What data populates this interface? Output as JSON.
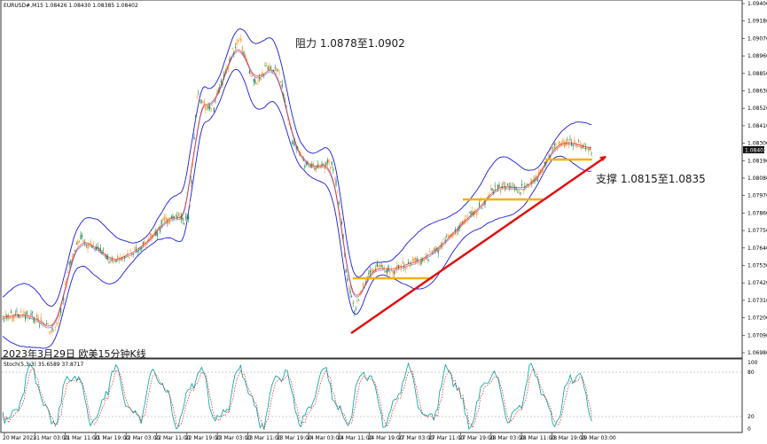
{
  "symbol_header": "EURUSD#,M15  1.08426 1.08430 1.08385 1.08402",
  "annotations": {
    "resistance": "阻力 1.0878至1.0902",
    "support": "支撑 1.0815至1.0835",
    "caption": "2023年3月29日 欧美15分钟K线"
  },
  "current_price": "1.08402",
  "price_axis": [
    "1.09400",
    "1.09180",
    "1.09070",
    "1.08960",
    "1.08850",
    "1.08630",
    "1.08520",
    "1.08410",
    "1.08300",
    "1.08190",
    "1.08080",
    "1.07970",
    "1.07860",
    "1.07750",
    "1.07640",
    "1.07530",
    "1.07420",
    "1.07310",
    "1.07200",
    "1.07090",
    "1.06980"
  ],
  "osc_label": "Stoch(5,3,3) 35.6589 37.8717",
  "osc_axis": [
    "100",
    "80",
    "20",
    "0"
  ],
  "time_axis": [
    "20 Mar 2023",
    "21 Mar 03:00",
    "21 Mar 11:00",
    "21 Mar 19:00",
    "22 Mar 03:00",
    "22 Mar 11:00",
    "22 Mar 19:00",
    "23 Mar 03:00",
    "23 Mar 11:00",
    "23 Mar 19:00",
    "24 Mar 03:00",
    "24 Mar 11:00",
    "24 Mar 19:00",
    "27 Mar 03:00",
    "27 Mar 11:00",
    "27 Mar 19:00",
    "28 Mar 03:00",
    "28 Mar 11:00",
    "28 Mar 19:00",
    "29 Mar 03:00"
  ],
  "colors": {
    "bands": "#1a1ad6",
    "ma": "#e01010",
    "bull": "#2e8b57",
    "bear": "#ff9933",
    "support_line": "#e01010",
    "level": "#f2b200",
    "stoch_main": "#00a0a0",
    "stoch_signal": "#d02020"
  }
}
